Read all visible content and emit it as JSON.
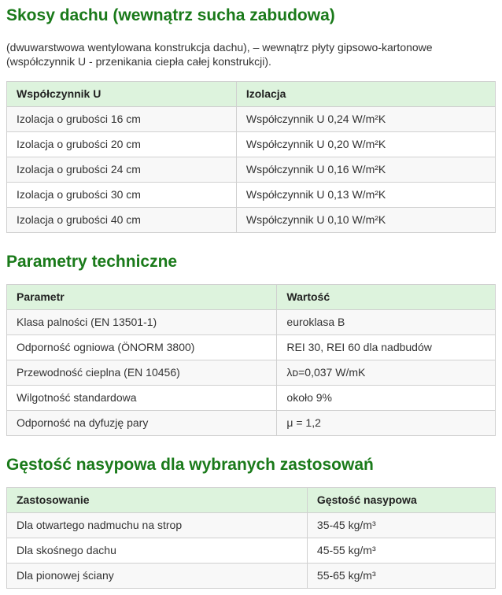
{
  "colors": {
    "heading_green": "#1a7a1a",
    "table_header_bg": "#ddf3dd",
    "row_alt_bg": "#f8f8f8",
    "border": "#d0d0d0",
    "text": "#333333"
  },
  "sections": [
    {
      "heading": "Skosy dachu (wewnątrz sucha zabudowa)",
      "intro": "(dwuwarstwowa wentylowana konstrukcja dachu), – wewnątrz płyty gipsowo-kartonowe (współczynnik U - przenikania ciepła całej konstrukcji).",
      "table": {
        "headers": [
          "Współczynnik U",
          "Izolacja"
        ],
        "rows": [
          [
            "Izolacja o grubości 16 cm",
            "Współczynnik U 0,24 W/m²K"
          ],
          [
            "Izolacja o grubości 20 cm",
            "Współczynnik U 0,20 W/m²K"
          ],
          [
            "Izolacja o grubości 24 cm",
            "Współczynnik U 0,16 W/m²K"
          ],
          [
            "Izolacja o grubości 30 cm",
            "Współczynnik U 0,13 W/m²K"
          ],
          [
            "Izolacja o grubości 40 cm",
            "Współczynnik U 0,10 W/m²K"
          ]
        ]
      }
    },
    {
      "heading": "Parametry techniczne",
      "intro": "",
      "table": {
        "headers": [
          "Parametr",
          "Wartość"
        ],
        "rows": [
          [
            "Klasa palności (EN 13501-1)",
            "euroklasa B"
          ],
          [
            "Odporność ogniowa (ÖNORM 3800)",
            "REI 30, REI 60 dla nadbudów"
          ],
          [
            "Przewodność cieplna (EN 10456)",
            "λᴅ=0,037 W/mK"
          ],
          [
            "Wilgotność standardowa",
            "około 9%"
          ],
          [
            "Odporność na dyfuzję pary",
            "μ = 1,2"
          ]
        ]
      }
    },
    {
      "heading": "Gęstość nasypowa dla wybranych zastosowań",
      "intro": "",
      "table": {
        "headers": [
          "Zastosowanie",
          "Gęstość nasypowa"
        ],
        "rows": [
          [
            "Dla otwartego nadmuchu na strop",
            "35-45 kg/m³"
          ],
          [
            "Dla skośnego dachu",
            "45-55 kg/m³"
          ],
          [
            "Dla pionowej ściany",
            "55-65 kg/m³"
          ]
        ]
      }
    }
  ]
}
